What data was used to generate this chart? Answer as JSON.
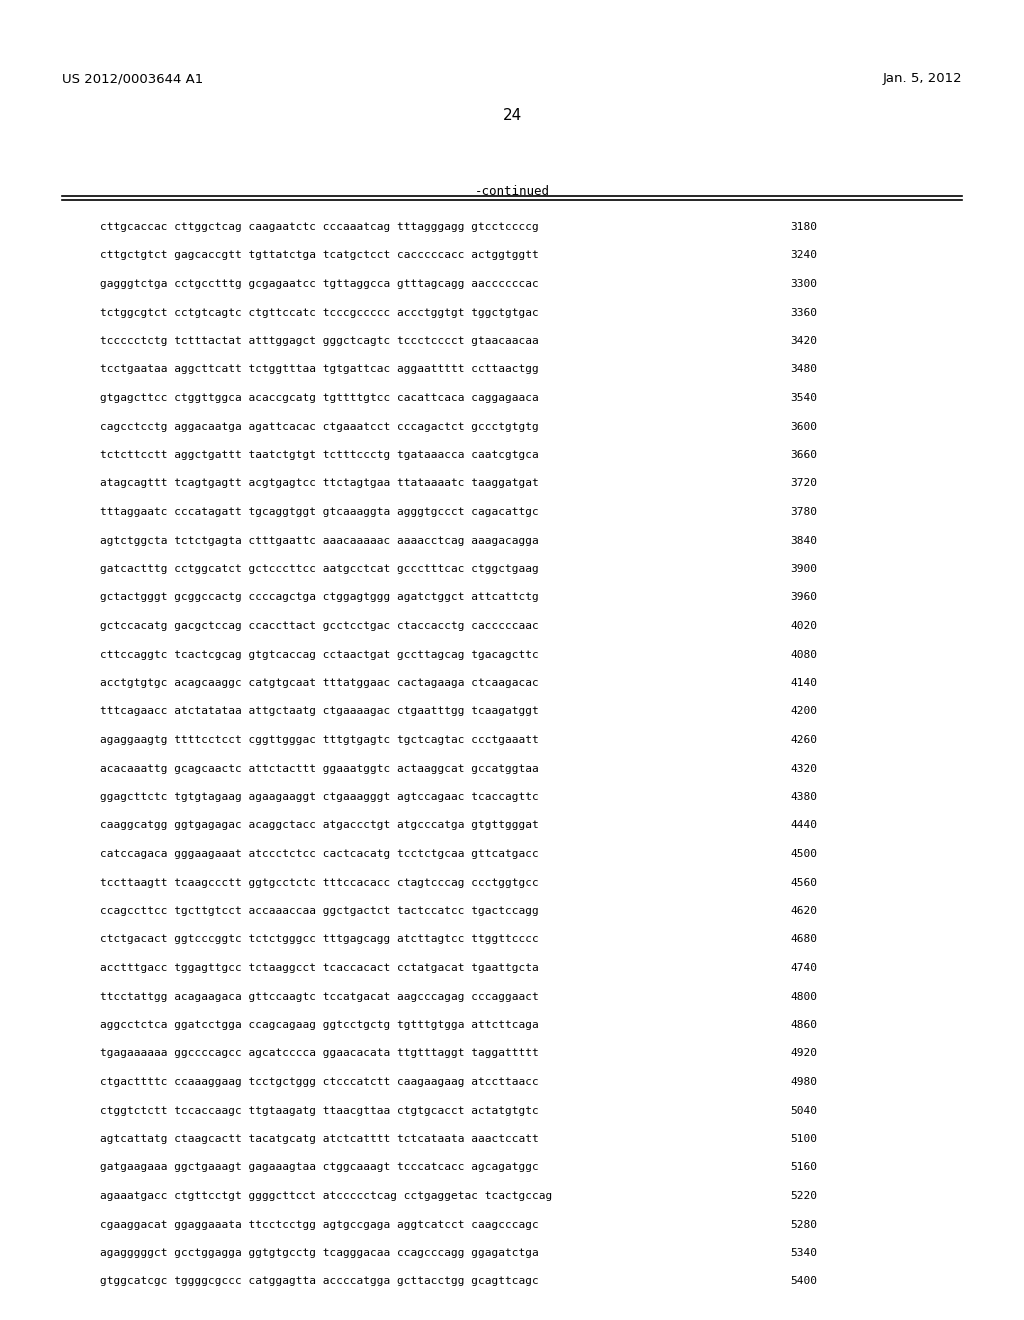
{
  "patent_number": "US 2012/0003644 A1",
  "date": "Jan. 5, 2012",
  "page_number": "24",
  "continued_label": "-continued",
  "background_color": "#ffffff",
  "text_color": "#000000",
  "sequences": [
    [
      "cttgcaccac cttggctcag caagaatctc cccaaatcag tttagggagg gtcctccccg",
      "3180"
    ],
    [
      "cttgctgtct gagcaccgtt tgttatctga tcatgctcct cacccccacc actggtggtt",
      "3240"
    ],
    [
      "gagggtctga cctgcctttg gcgagaatcc tgttaggcca gtttagcagg aaccccccac",
      "3300"
    ],
    [
      "tctggcgtct cctgtcagtc ctgttccatc tcccgccccc accctggtgt tggctgtgac",
      "3360"
    ],
    [
      "tccccctctg tctttactat atttggagct gggctcagtc tccctcccct gtaacaacaa",
      "3420"
    ],
    [
      "tcctgaataa aggcttcatt tctggtttaa tgtgattcac aggaattttt ccttaactgg",
      "3480"
    ],
    [
      "gtgagcttcc ctggttggca acaccgcatg tgttttgtcc cacattcaca caggagaaca",
      "3540"
    ],
    [
      "cagcctcctg aggacaatga agattcacac ctgaaatcct cccagactct gccctgtgtg",
      "3600"
    ],
    [
      "tctcttcctt aggctgattt taatctgtgt tctttccctg tgataaacca caatcgtgca",
      "3660"
    ],
    [
      "atagcagttt tcagtgagtt acgtgagtcc ttctagtgaa ttataaaatc taaggatgat",
      "3720"
    ],
    [
      "tttaggaatc cccatagatt tgcaggtggt gtcaaaggta agggtgccct cagacattgc",
      "3780"
    ],
    [
      "agtctggcta tctctgagta ctttgaattc aaacaaaaac aaaacctcag aaagacagga",
      "3840"
    ],
    [
      "gatcactttg cctggcatct gctcccttcc aatgcctcat gccctttcac ctggctgaag",
      "3900"
    ],
    [
      "gctactgggt gcggccactg ccccagctga ctggagtggg agatctggct attcattctg",
      "3960"
    ],
    [
      "gctccacatg gacgctccag ccaccttact gcctcctgac ctaccacctg cacccccaac",
      "4020"
    ],
    [
      "cttccaggtc tcactcgcag gtgtcaccag cctaactgat gccttagcag tgacagcttc",
      "4080"
    ],
    [
      "acctgtgtgc acagcaaggc catgtgcaat tttatggaac cactagaaga ctcaagacac",
      "4140"
    ],
    [
      "tttcagaacc atctatataa attgctaatg ctgaaaagac ctgaatttgg tcaagatggt",
      "4200"
    ],
    [
      "agaggaagtg ttttcctcct cggttgggac tttgtgagtc tgctcagtac ccctgaaatt",
      "4260"
    ],
    [
      "acacaaattg gcagcaactc attctacttt ggaaatggtc actaaggcat gccatggtaa",
      "4320"
    ],
    [
      "ggagcttctc tgtgtagaag agaagaaggt ctgaaagggt agtccagaac tcaccagttc",
      "4380"
    ],
    [
      "caaggcatgg ggtgagagac acaggctacc atgaccctgt atgcccatga gtgttgggat",
      "4440"
    ],
    [
      "catccagaca gggaagaaat atccctctcc cactcacatg tcctctgcaa gttcatgacc",
      "4500"
    ],
    [
      "tccttaagtt tcaagccctt ggtgcctctc tttccacacc ctagtcccag ccctggtgcc",
      "4560"
    ],
    [
      "ccagccttcc tgcttgtcct accaaaccaa ggctgactct tactccatcc tgactccagg",
      "4620"
    ],
    [
      "ctctgacact ggtcccggtc tctctgggcc tttgagcagg atcttagtcc ttggttcccc",
      "4680"
    ],
    [
      "acctttgacc tggagttgcc tctaaggcct tcaccacact cctatgacat tgaattgcta",
      "4740"
    ],
    [
      "ttcctattgg acagaagaca gttccaagtc tccatgacat aagcccagag cccaggaact",
      "4800"
    ],
    [
      "aggcctctca ggatcctgga ccagcagaag ggtcctgctg tgtttgtgga attcttcaga",
      "4860"
    ],
    [
      "tgagaaaaaa ggccccagcc agcatcccca ggaacacata ttgtttaggt taggattttt",
      "4920"
    ],
    [
      "ctgacttttc ccaaaggaag tcctgctggg ctcccatctt caagaagaag atccttaacc",
      "4980"
    ],
    [
      "ctggtctctt tccaccaagc ttgtaagatg ttaacgttaa ctgtgcacct actatgtgtc",
      "5040"
    ],
    [
      "agtcattatg ctaagcactt tacatgcatg atctcatttt tctcataata aaactccatt",
      "5100"
    ],
    [
      "gatgaagaaa ggctgaaagt gagaaagtaa ctggcaaagt tcccatcacc agcagatggc",
      "5160"
    ],
    [
      "agaaatgacc ctgttcctgt ggggcttcct atccccctcag cctgaggetac tcactgccag",
      "5220"
    ],
    [
      "cgaaggacat ggaggaaata ttcctcctgg agtgccgaga aggtcatcct caagcccagc",
      "5280"
    ],
    [
      "agagggggct gcctggagga ggtgtgcctg tcagggacaa ccagcccagg ggagatctga",
      "5340"
    ],
    [
      "gtggcatcgc tggggcgccc catggagtta accccatgga gcttacctgg gcagttcagc",
      "5400"
    ]
  ]
}
